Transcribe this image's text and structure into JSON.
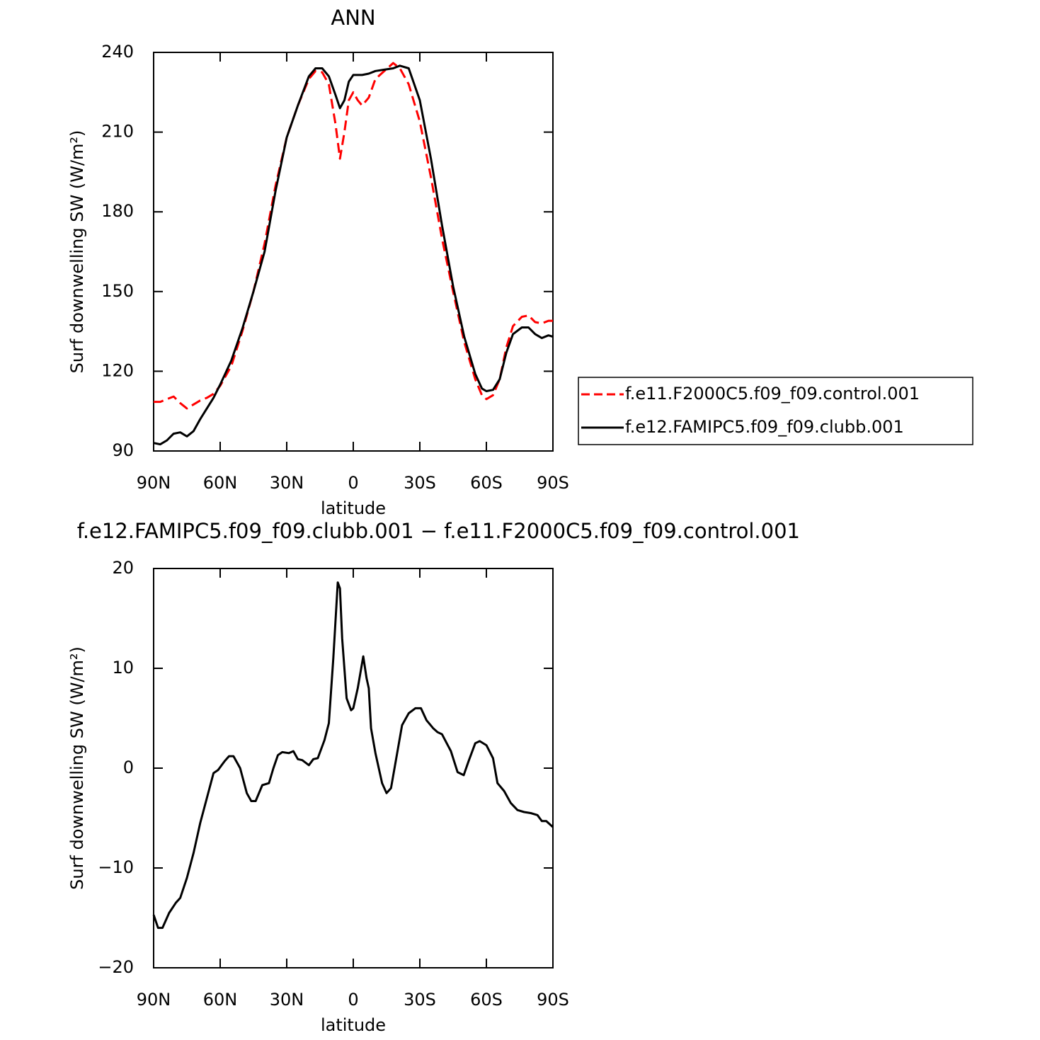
{
  "chart_data": [
    {
      "type": "line",
      "title": "ANN",
      "xlabel": "latitude",
      "ylabel": "Surf downwelling SW (W/m²)",
      "xlim": [
        90,
        -90
      ],
      "xticks": [
        {
          "value": 90,
          "label": "90N"
        },
        {
          "value": 60,
          "label": "60N"
        },
        {
          "value": 30,
          "label": "30N"
        },
        0,
        {
          "value": -30,
          "label": "30S"
        },
        {
          "value": -60,
          "label": "60S"
        },
        {
          "value": -90,
          "label": "90S"
        }
      ],
      "ylim": [
        90,
        240
      ],
      "yticks": [
        90,
        120,
        150,
        180,
        210,
        240
      ],
      "legend": "right",
      "x": [
        90,
        87,
        84,
        81,
        78,
        75,
        72,
        69,
        66,
        63,
        60,
        55,
        50,
        45,
        40,
        35,
        30,
        25,
        20,
        17,
        14,
        11,
        8,
        6,
        4,
        2,
        0,
        -2,
        -4,
        -7,
        -10,
        -14,
        -18,
        -21,
        -25,
        -30,
        -35,
        -40,
        -45,
        -50,
        -55,
        -58,
        -60,
        -63,
        -66,
        -69,
        -72,
        -76,
        -79,
        -82,
        -85,
        -88,
        -90
      ],
      "series": [
        {
          "name": "f.e11.F2000C5.f09_f09.control.001",
          "color": "#ff0000",
          "dashed": true,
          "values": [
            108.5,
            108.5,
            109.5,
            110.5,
            108,
            106,
            107.5,
            109,
            110,
            111.5,
            114.5,
            122,
            135,
            150,
            168,
            190,
            208,
            220,
            230,
            233,
            232.5,
            228,
            213,
            200,
            210,
            222,
            225,
            222,
            220,
            223,
            230,
            233,
            236,
            234,
            228,
            214,
            193,
            170,
            150,
            131,
            117,
            111,
            109.5,
            111,
            117,
            129,
            137,
            140.5,
            141,
            138.5,
            138,
            139,
            139
          ]
        },
        {
          "name": "f.e12.FAMIPC5.f09_f09.clubb.001",
          "color": "#000000",
          "dashed": false,
          "values": [
            93,
            92.5,
            94,
            96.5,
            97,
            95.5,
            97.5,
            102,
            106,
            110,
            115,
            124,
            136,
            150,
            165,
            188,
            208,
            220,
            231,
            234,
            234,
            231,
            224,
            219,
            222,
            229,
            231.5,
            231.5,
            231.5,
            232,
            233,
            233.5,
            234,
            235,
            234,
            222,
            200,
            175,
            152,
            133,
            119,
            113.5,
            112.5,
            113,
            117,
            127,
            134,
            136.5,
            136.5,
            134,
            132.5,
            133.5,
            133
          ]
        }
      ]
    },
    {
      "type": "line",
      "title": "f.e12.FAMIPC5.f09_f09.clubb.001 − f.e11.F2000C5.f09_f09.control.001",
      "xlabel": "latitude",
      "ylabel": "Surf downwelling SW (W/m²)",
      "xlim": [
        90,
        -90
      ],
      "xticks": [
        {
          "value": 90,
          "label": "90N"
        },
        {
          "value": 60,
          "label": "60N"
        },
        {
          "value": 30,
          "label": "30N"
        },
        0,
        {
          "value": -30,
          "label": "30S"
        },
        {
          "value": -60,
          "label": "60S"
        },
        {
          "value": -90,
          "label": "90S"
        }
      ],
      "ylim": [
        -20,
        20
      ],
      "yticks": [
        {
          "value": -20,
          "label": "−20"
        },
        {
          "value": -10,
          "label": "−10"
        },
        0,
        10,
        20
      ],
      "x": [
        90,
        88,
        86,
        83,
        80,
        78,
        75,
        72,
        69,
        66,
        63,
        61,
        58,
        56,
        54,
        51,
        48,
        46,
        44,
        41,
        38,
        36,
        34,
        32,
        29,
        27,
        25,
        23,
        20,
        18,
        16,
        13,
        11,
        9,
        7,
        6,
        5,
        3,
        1,
        0,
        -2,
        -4.5,
        -6,
        -7,
        -8,
        -10,
        -13,
        -15,
        -17,
        -19,
        -22,
        -25,
        -28,
        -30.5,
        -33,
        -36,
        -38,
        -40,
        -44,
        -47,
        -49.8,
        -52,
        -55,
        -57,
        -60,
        -63,
        -65,
        -68,
        -71,
        -74,
        -77,
        -80,
        -83,
        -85,
        -87,
        -90
      ],
      "series": [
        {
          "name": null,
          "color": "#000000",
          "dashed": false,
          "values": [
            -14.7,
            -16,
            -16,
            -14.5,
            -13.5,
            -13,
            -11,
            -8.5,
            -5.5,
            -3,
            -0.5,
            -0.2,
            0.7,
            1.2,
            1.2,
            0,
            -2.5,
            -3.3,
            -3.3,
            -1.7,
            -1.5,
            0,
            1.3,
            1.6,
            1.5,
            1.7,
            0.9,
            0.8,
            0.3,
            0.9,
            1,
            2.8,
            4.5,
            11,
            18.6,
            18,
            13,
            7,
            5.8,
            6,
            8,
            11.2,
            9,
            8,
            4,
            1.5,
            -1.5,
            -2.5,
            -2,
            0.5,
            4.3,
            5.5,
            6,
            6,
            4.8,
            4,
            3.6,
            3.4,
            1.7,
            -0.4,
            -0.7,
            0.7,
            2.5,
            2.7,
            2.3,
            1,
            -1.5,
            -2.3,
            -3.5,
            -4.2,
            -4.4,
            -4.5,
            -4.7,
            -5.3,
            -5.3,
            -5.9
          ]
        }
      ]
    }
  ]
}
